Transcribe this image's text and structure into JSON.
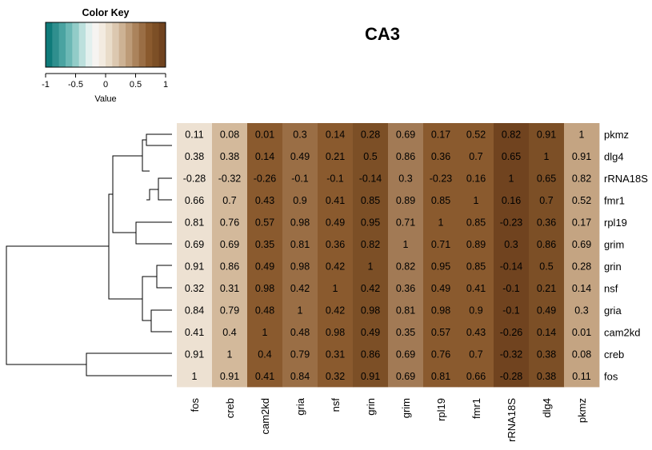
{
  "chart_data": {
    "type": "heatmap",
    "title": "CA3",
    "rows": [
      "pkmz",
      "dlg4",
      "rRNA18S",
      "fmr1",
      "rpl19",
      "grim",
      "grin",
      "nsf",
      "gria",
      "cam2kd",
      "creb",
      "fos"
    ],
    "columns": [
      "fos",
      "creb",
      "cam2kd",
      "gria",
      "nsf",
      "grin",
      "grim",
      "rpl19",
      "fmr1",
      "rRNA18S",
      "dlg4",
      "pkmz"
    ],
    "values": [
      [
        "0.11",
        "0.08",
        "0.01",
        "0.3",
        "0.14",
        "0.28",
        "0.69",
        "0.17",
        "0.52",
        "0.82",
        "0.91",
        "1"
      ],
      [
        "0.38",
        "0.38",
        "0.14",
        "0.49",
        "0.21",
        "0.5",
        "0.86",
        "0.36",
        "0.7",
        "0.65",
        "1",
        "0.91"
      ],
      [
        "-0.28",
        "-0.32",
        "-0.26",
        "-0.1",
        "-0.1",
        "-0.14",
        "0.3",
        "-0.23",
        "0.16",
        "1",
        "0.65",
        "0.82"
      ],
      [
        "0.66",
        "0.7",
        "0.43",
        "0.9",
        "0.41",
        "0.85",
        "0.89",
        "0.85",
        "1",
        "0.16",
        "0.7",
        "0.52"
      ],
      [
        "0.81",
        "0.76",
        "0.57",
        "0.98",
        "0.49",
        "0.95",
        "0.71",
        "1",
        "0.85",
        "-0.23",
        "0.36",
        "0.17"
      ],
      [
        "0.69",
        "0.69",
        "0.35",
        "0.81",
        "0.36",
        "0.82",
        "1",
        "0.71",
        "0.89",
        "0.3",
        "0.86",
        "0.69"
      ],
      [
        "0.91",
        "0.86",
        "0.49",
        "0.98",
        "0.42",
        "1",
        "0.82",
        "0.95",
        "0.85",
        "-0.14",
        "0.5",
        "0.28"
      ],
      [
        "0.32",
        "0.31",
        "0.98",
        "0.42",
        "1",
        "0.42",
        "0.36",
        "0.49",
        "0.41",
        "-0.1",
        "0.21",
        "0.14"
      ],
      [
        "0.84",
        "0.79",
        "0.48",
        "1",
        "0.42",
        "0.98",
        "0.81",
        "0.98",
        "0.9",
        "-0.1",
        "0.49",
        "0.3"
      ],
      [
        "0.41",
        "0.4",
        "1",
        "0.48",
        "0.98",
        "0.49",
        "0.35",
        "0.57",
        "0.43",
        "-0.26",
        "0.14",
        "0.01"
      ],
      [
        "0.91",
        "1",
        "0.4",
        "0.79",
        "0.31",
        "0.86",
        "0.69",
        "0.76",
        "0.7",
        "-0.32",
        "0.38",
        "0.08"
      ],
      [
        "1",
        "0.91",
        "0.41",
        "0.84",
        "0.32",
        "0.91",
        "0.69",
        "0.81",
        "0.66",
        "-0.28",
        "0.38",
        "0.11"
      ]
    ],
    "column_colors": [
      "#ede1d2",
      "#d3b99b",
      "#8a5a2e",
      "#9a6e45",
      "#8a5a2e",
      "#7c4f26",
      "#a27a55",
      "#8a5a2e",
      "#8a5a2e",
      "#70431f",
      "#7c4f26",
      "#c4a482"
    ],
    "color_key": {
      "title": "Color Key",
      "label": "Value",
      "ticks": [
        "-1",
        "-0.5",
        "0",
        "0.5",
        "1"
      ],
      "range": [
        -1,
        1
      ],
      "colors": [
        "#0f7b7a",
        "#2f8f8e",
        "#4aa3a1",
        "#6cb8b5",
        "#92ccc8",
        "#bce0dd",
        "#e2f0ee",
        "#f6f4f1",
        "#f3ebe0",
        "#e9dcc9",
        "#dcc8b0",
        "#cdb294",
        "#bd9b78",
        "#ab835c",
        "#9a6e45",
        "#8a5a2e",
        "#7c4f26",
        "#70431f"
      ]
    }
  }
}
